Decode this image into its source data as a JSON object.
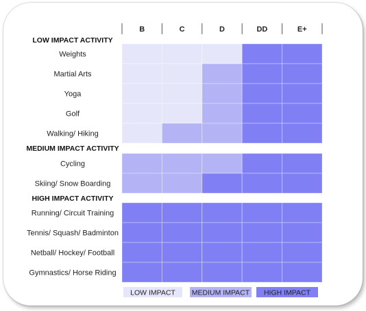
{
  "chart_data": {
    "type": "heatmap",
    "columns": [
      "B",
      "C",
      "D",
      "DD",
      "E+"
    ],
    "groups": [
      {
        "title": "LOW IMPACT ACTIVITY",
        "rows": [
          {
            "label": "Weights",
            "values": [
              "low",
              "low",
              "low",
              "high",
              "high"
            ]
          },
          {
            "label": "Martial Arts",
            "values": [
              "low",
              "low",
              "medium",
              "high",
              "high"
            ]
          },
          {
            "label": "Yoga",
            "values": [
              "low",
              "low",
              "medium",
              "high",
              "high"
            ]
          },
          {
            "label": "Golf",
            "values": [
              "low",
              "low",
              "medium",
              "high",
              "high"
            ]
          },
          {
            "label": "Walking/ Hiking",
            "values": [
              "low",
              "medium",
              "medium",
              "high",
              "high"
            ]
          }
        ]
      },
      {
        "title": "MEDIUM IMPACT ACTIVITY",
        "rows": [
          {
            "label": "Cycling",
            "values": [
              "medium",
              "medium",
              "medium",
              "high",
              "high"
            ]
          },
          {
            "label": "Skiing/ Snow Boarding",
            "values": [
              "medium",
              "medium",
              "high",
              "high",
              "high"
            ]
          }
        ]
      },
      {
        "title": "HIGH IMPACT ACTIVITY",
        "rows": [
          {
            "label": "Running/ Circuit Training",
            "values": [
              "high",
              "high",
              "high",
              "high",
              "high"
            ]
          },
          {
            "label": "Tennis/ Squash/ Badminton",
            "values": [
              "high",
              "high",
              "high",
              "high",
              "high"
            ]
          },
          {
            "label": "Netball/ Hockey/ Football",
            "values": [
              "high",
              "high",
              "high",
              "high",
              "high"
            ]
          },
          {
            "label": "Gymnastics/ Horse Riding",
            "values": [
              "high",
              "high",
              "high",
              "high",
              "high"
            ]
          }
        ]
      }
    ],
    "legend": [
      {
        "key": "low",
        "label": "LOW IMPACT",
        "color": "#e6e6fb"
      },
      {
        "key": "medium",
        "label": "MEDIUM IMPACT",
        "color": "#b3b3f6"
      },
      {
        "key": "high",
        "label": "HIGH IMPACT",
        "color": "#8080f4"
      }
    ],
    "legend_placement": "bottom"
  }
}
